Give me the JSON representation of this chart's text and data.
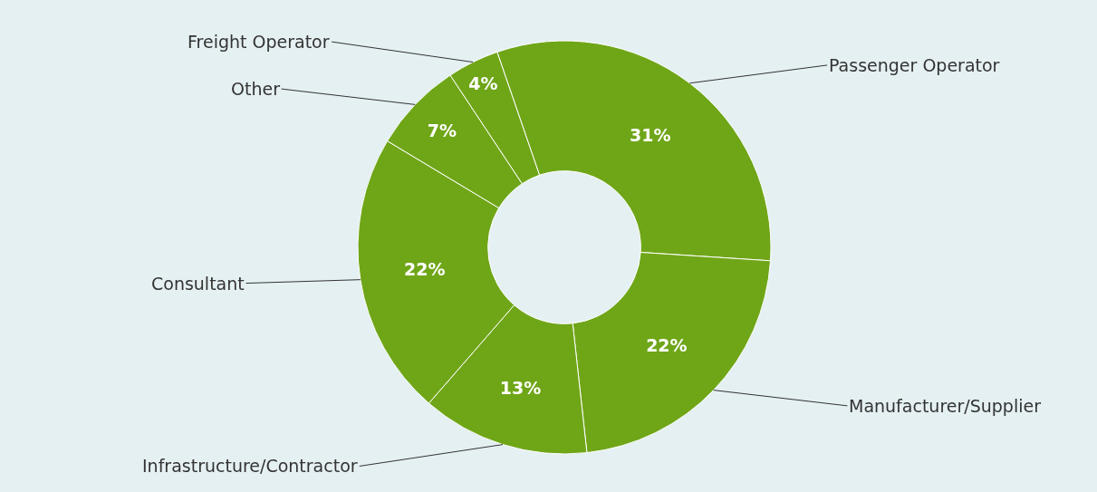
{
  "chart_data": {
    "type": "donut",
    "categories": [
      "Passenger Operator",
      "Manufacturer/Supplier",
      "Infrastructure/Contractor",
      "Consultant",
      "Other",
      "Freight Operator"
    ],
    "values": [
      31,
      22,
      13,
      22,
      7,
      4
    ],
    "value_labels": [
      "31%",
      "22%",
      "13%",
      "22%",
      "7%",
      "4%"
    ],
    "colors": [
      "#6fa618",
      "#6fa618",
      "#6fa618",
      "#6fa618",
      "#6fa618",
      "#6fa618"
    ],
    "legend": false
  }
}
